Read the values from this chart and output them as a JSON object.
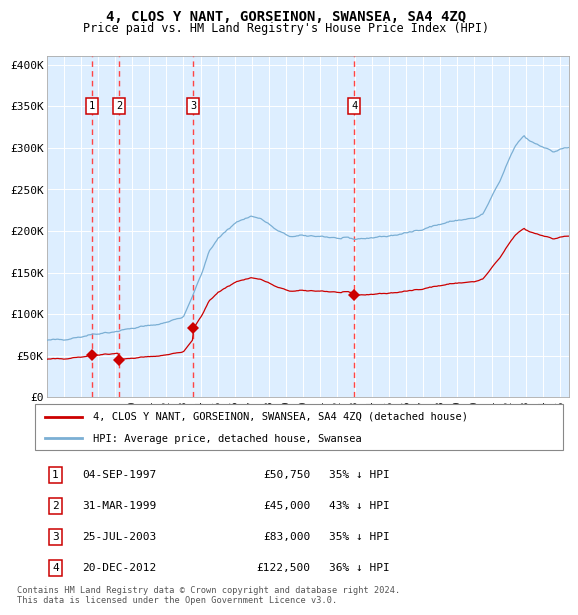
{
  "title": "4, CLOS Y NANT, GORSEINON, SWANSEA, SA4 4ZQ",
  "subtitle": "Price paid vs. HM Land Registry's House Price Index (HPI)",
  "background_color": "#ffffff",
  "plot_bg_color": "#ddeeff",
  "title_fontsize": 10,
  "subtitle_fontsize": 8.5,
  "transactions": [
    {
      "num": 1,
      "date_label": "04-SEP-1997",
      "date_x": 1997.67,
      "price": 50750,
      "pct": "35%"
    },
    {
      "num": 2,
      "date_label": "31-MAR-1999",
      "date_x": 1999.25,
      "price": 45000,
      "pct": "43%"
    },
    {
      "num": 3,
      "date_label": "25-JUL-2003",
      "date_x": 2003.56,
      "price": 83000,
      "pct": "35%"
    },
    {
      "num": 4,
      "date_label": "20-DEC-2012",
      "date_x": 2012.97,
      "price": 122500,
      "pct": "36%"
    }
  ],
  "legend_property": "4, CLOS Y NANT, GORSEINON, SWANSEA, SA4 4ZQ (detached house)",
  "legend_hpi": "HPI: Average price, detached house, Swansea",
  "footer": "Contains HM Land Registry data © Crown copyright and database right 2024.\nThis data is licensed under the Open Government Licence v3.0.",
  "property_color": "#cc0000",
  "hpi_color": "#7bafd4",
  "vline_color": "#ff4444",
  "marker_color": "#cc0000",
  "xlim": [
    1995,
    2025.5
  ],
  "ylim": [
    0,
    410000
  ],
  "yticks": [
    0,
    50000,
    100000,
    150000,
    200000,
    250000,
    300000,
    350000,
    400000
  ],
  "ytick_labels": [
    "£0",
    "£50K",
    "£100K",
    "£150K",
    "£200K",
    "£250K",
    "£300K",
    "£350K",
    "£400K"
  ],
  "xtick_years": [
    1995,
    1996,
    1997,
    1998,
    1999,
    2000,
    2001,
    2002,
    2003,
    2004,
    2005,
    2006,
    2007,
    2008,
    2009,
    2010,
    2011,
    2012,
    2013,
    2014,
    2015,
    2016,
    2017,
    2018,
    2019,
    2020,
    2021,
    2022,
    2023,
    2024,
    2025
  ]
}
